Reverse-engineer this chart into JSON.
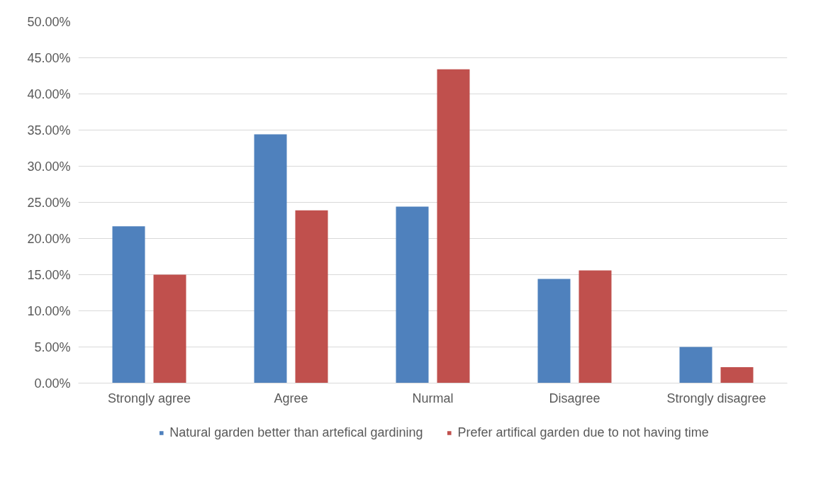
{
  "chart_data": {
    "type": "bar",
    "categories": [
      "Strongly agree",
      "Agree",
      "Nurmal",
      "Disagree",
      "Strongly disagree"
    ],
    "series": [
      {
        "name": "Natural garden better than artefical gardining",
        "color": "#4f81bd",
        "values": [
          21.7,
          34.4,
          24.4,
          14.4,
          5.0
        ]
      },
      {
        "name": "Prefer artifical garden due to not having time",
        "color": "#c0504d",
        "values": [
          15.0,
          23.9,
          43.4,
          15.6,
          2.2
        ]
      }
    ],
    "ylim": [
      0,
      50
    ],
    "yticks": [
      {
        "value": 0,
        "label": "0.00%"
      },
      {
        "value": 5,
        "label": "5.00%"
      },
      {
        "value": 10,
        "label": "10.00%"
      },
      {
        "value": 15,
        "label": "15.00%"
      },
      {
        "value": 20,
        "label": "20.00%"
      },
      {
        "value": 25,
        "label": "25.00%"
      },
      {
        "value": 30,
        "label": "30.00%"
      },
      {
        "value": 35,
        "label": "35.00%"
      },
      {
        "value": 40,
        "label": "40.00%"
      },
      {
        "value": 45,
        "label": "45.00%"
      },
      {
        "value": 50,
        "label": "50.00%"
      }
    ],
    "grid": "y",
    "legend": "bottom"
  }
}
